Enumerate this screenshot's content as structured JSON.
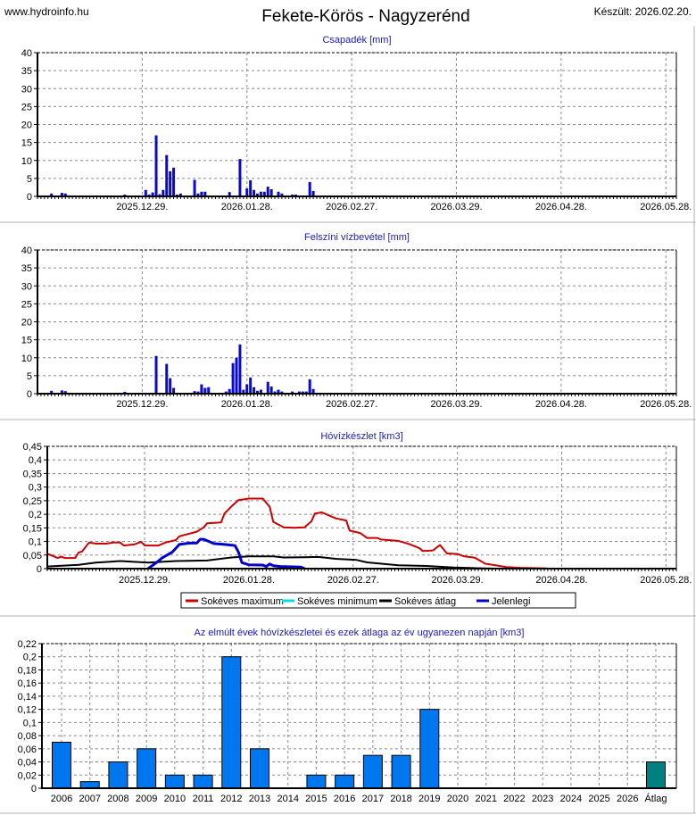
{
  "header": {
    "site": "www.hydroinfo.hu",
    "title": "Fekete-Körös - Nagyzerénd",
    "created": "Készült: 2026.02.20."
  },
  "colors": {
    "bar": "#0a0acc",
    "maximum": "#cc0000",
    "minimum": "#00e0e0",
    "average": "#000000",
    "current": "#0000cc",
    "year_bar": "#0077ee",
    "average_bar": "#008080",
    "title": "#1a1ab8"
  },
  "chart_data": [
    {
      "type": "bar",
      "title": "Csapadék [mm]",
      "xlim": [
        "2025.11.29",
        "2026.05.31"
      ],
      "ylim": [
        0,
        40
      ],
      "grid": true,
      "yticks": [
        "0",
        "5",
        "10",
        "15",
        "20",
        "25",
        "30",
        "35",
        "40"
      ],
      "xticks": [
        "2025.12.29.",
        "2026.01.28.",
        "2026.02.27.",
        "2026.03.29.",
        "2026.04.28.",
        "2026.05.28."
      ],
      "points": [
        [
          "2025.12.03",
          0.8
        ],
        [
          "2025.12.06",
          1.0
        ],
        [
          "2025.12.07",
          0.8
        ],
        [
          "2025.12.24",
          0.5
        ],
        [
          "2025.12.30",
          1.8
        ],
        [
          "2025.12.31",
          0.5
        ],
        [
          "2026.01.01",
          1.1
        ],
        [
          "2026.01.02",
          17
        ],
        [
          "2026.01.03",
          0.6
        ],
        [
          "2026.01.04",
          1.8
        ],
        [
          "2026.01.05",
          11.5
        ],
        [
          "2026.01.06",
          7
        ],
        [
          "2026.01.07",
          8
        ],
        [
          "2026.01.08",
          0.5
        ],
        [
          "2026.01.09",
          0.8
        ],
        [
          "2026.01.13",
          4.6
        ],
        [
          "2026.01.14",
          0.8
        ],
        [
          "2026.01.15",
          1.3
        ],
        [
          "2026.01.16",
          1.3
        ],
        [
          "2026.01.23",
          1.2
        ],
        [
          "2026.01.26",
          10.4
        ],
        [
          "2026.01.28",
          2.2
        ],
        [
          "2026.01.29",
          4.5
        ],
        [
          "2026.01.30",
          1.8
        ],
        [
          "2026.01.31",
          0.8
        ],
        [
          "2026.02.01",
          1.3
        ],
        [
          "2026.02.02",
          1.3
        ],
        [
          "2026.02.03",
          2.7
        ],
        [
          "2026.02.04",
          2
        ],
        [
          "2026.02.06",
          1.3
        ],
        [
          "2026.02.07",
          0.8
        ],
        [
          "2026.02.10",
          0.5
        ],
        [
          "2026.02.11",
          0.5
        ],
        [
          "2026.02.15",
          4
        ],
        [
          "2026.02.16",
          1.5
        ]
      ]
    },
    {
      "type": "bar",
      "title": "Felszíni vízbevétel [mm]",
      "xlim": [
        "2025.11.29",
        "2026.05.31"
      ],
      "ylim": [
        0,
        40
      ],
      "grid": true,
      "yticks": [
        "0",
        "5",
        "10",
        "15",
        "20",
        "25",
        "30",
        "35",
        "40"
      ],
      "xticks": [
        "2025.12.29.",
        "2026.01.28.",
        "2026.02.27.",
        "2026.03.29.",
        "2026.04.28.",
        "2026.05.28."
      ],
      "points": [
        [
          "2025.12.03",
          0.8
        ],
        [
          "2025.12.06",
          0.9
        ],
        [
          "2025.12.07",
          0.7
        ],
        [
          "2025.12.24",
          0.5
        ],
        [
          "2026.01.02",
          10.5
        ],
        [
          "2026.01.05",
          8.3
        ],
        [
          "2026.01.06",
          4.3
        ],
        [
          "2026.01.07",
          1.6
        ],
        [
          "2026.01.13",
          0.7
        ],
        [
          "2026.01.14",
          0.6
        ],
        [
          "2026.01.15",
          2.6
        ],
        [
          "2026.01.16",
          1.6
        ],
        [
          "2026.01.17",
          1.8
        ],
        [
          "2026.01.22",
          0.6
        ],
        [
          "2026.01.23",
          1.3
        ],
        [
          "2026.01.24",
          8.5
        ],
        [
          "2026.01.25",
          10
        ],
        [
          "2026.01.26",
          13.7
        ],
        [
          "2026.01.27",
          1.1
        ],
        [
          "2026.01.28",
          2.6
        ],
        [
          "2026.01.29",
          4.5
        ],
        [
          "2026.01.30",
          1.8
        ],
        [
          "2026.01.31",
          0.8
        ],
        [
          "2026.02.01",
          1.1
        ],
        [
          "2026.02.03",
          3.3
        ],
        [
          "2026.02.04",
          2
        ],
        [
          "2026.02.05",
          0.6
        ],
        [
          "2026.02.06",
          1.1
        ],
        [
          "2026.02.07",
          0.6
        ],
        [
          "2026.02.10",
          0.6
        ],
        [
          "2026.02.12",
          0.6
        ],
        [
          "2026.02.13",
          0.6
        ],
        [
          "2026.02.14",
          0.6
        ],
        [
          "2026.02.15",
          4
        ],
        [
          "2026.02.16",
          1.3
        ]
      ]
    },
    {
      "type": "line",
      "title": "Hóvízkészlet [km3]",
      "xlim": [
        "2025.12.01",
        "2026.05.31"
      ],
      "ylim": [
        0,
        0.45
      ],
      "grid": true,
      "yticks": [
        "0",
        "0,05",
        "0,1",
        "0,15",
        "0,2",
        "0,25",
        "0,3",
        "0,35",
        "0,4",
        "0,45"
      ],
      "xticks": [
        "2025.12.29.",
        "2026.01.28.",
        "2026.02.27.",
        "2026.03.29.",
        "2026.04.28.",
        "2026.05.28."
      ],
      "legend_position": "bottom",
      "series": [
        {
          "name": "Sokéves maximum",
          "key": "maximum",
          "points": [
            [
              "2025.12.01",
              0.055
            ],
            [
              "2025.12.04",
              0.039
            ],
            [
              "2025.12.05",
              0.044
            ],
            [
              "2025.12.06",
              0.039
            ],
            [
              "2025.12.09",
              0.039
            ],
            [
              "2025.12.10",
              0.059
            ],
            [
              "2025.12.11",
              0.063
            ],
            [
              "2025.12.13",
              0.096
            ],
            [
              "2025.12.15",
              0.092
            ],
            [
              "2025.12.18",
              0.092
            ],
            [
              "2025.12.20",
              0.096
            ],
            [
              "2025.12.22",
              0.096
            ],
            [
              "2025.12.23",
              0.085
            ],
            [
              "2025.12.26",
              0.089
            ],
            [
              "2025.12.28",
              0.099
            ],
            [
              "2025.12.29",
              0.085
            ],
            [
              "2026.01.02",
              0.085
            ],
            [
              "2026.01.04",
              0.096
            ],
            [
              "2026.01.07",
              0.105
            ],
            [
              "2026.01.08",
              0.119
            ],
            [
              "2026.01.13",
              0.136
            ],
            [
              "2026.01.15",
              0.152
            ],
            [
              "2026.01.16",
              0.167
            ],
            [
              "2026.01.20",
              0.17
            ],
            [
              "2026.01.21",
              0.203
            ],
            [
              "2026.01.23",
              0.229
            ],
            [
              "2026.01.25",
              0.252
            ],
            [
              "2026.01.28",
              0.258
            ],
            [
              "2026.02.01",
              0.258
            ],
            [
              "2026.02.03",
              0.227
            ],
            [
              "2026.02.04",
              0.172
            ],
            [
              "2026.02.06",
              0.159
            ],
            [
              "2026.02.07",
              0.152
            ],
            [
              "2026.02.10",
              0.15
            ],
            [
              "2026.02.13",
              0.152
            ],
            [
              "2026.02.15",
              0.174
            ],
            [
              "2026.02.16",
              0.203
            ],
            [
              "2026.02.18",
              0.207
            ],
            [
              "2026.02.20",
              0.196
            ],
            [
              "2026.02.22",
              0.185
            ],
            [
              "2026.02.25",
              0.177
            ],
            [
              "2026.02.26",
              0.14
            ],
            [
              "2026.03.01",
              0.131
            ],
            [
              "2026.03.03",
              0.113
            ],
            [
              "2026.03.06",
              0.113
            ],
            [
              "2026.03.07",
              0.107
            ],
            [
              "2026.03.12",
              0.102
            ],
            [
              "2026.03.15",
              0.091
            ],
            [
              "2026.03.18",
              0.076
            ],
            [
              "2026.03.19",
              0.065
            ],
            [
              "2026.03.22",
              0.067
            ],
            [
              "2026.03.24",
              0.087
            ],
            [
              "2026.03.26",
              0.056
            ],
            [
              "2026.03.29",
              0.054
            ],
            [
              "2026.03.31",
              0.045
            ],
            [
              "2026.04.03",
              0.04
            ],
            [
              "2026.04.06",
              0.018
            ],
            [
              "2026.04.09",
              0.012
            ],
            [
              "2026.04.12",
              0.006
            ],
            [
              "2026.04.16",
              0.003
            ],
            [
              "2026.04.24",
              0.001
            ]
          ]
        },
        {
          "name": "Sokéves minimum",
          "key": "minimum",
          "points": [
            [
              "2025.12.01",
              0
            ],
            [
              "2026.04.24",
              0
            ]
          ]
        },
        {
          "name": "Sokéves átlag",
          "key": "average",
          "points": [
            [
              "2025.12.01",
              0.008
            ],
            [
              "2025.12.10",
              0.014
            ],
            [
              "2025.12.15",
              0.022
            ],
            [
              "2025.12.22",
              0.028
            ],
            [
              "2025.12.30",
              0.022
            ],
            [
              "2026.01.07",
              0.028
            ],
            [
              "2026.01.16",
              0.03
            ],
            [
              "2026.01.23",
              0.041
            ],
            [
              "2026.01.28",
              0.045
            ],
            [
              "2026.02.04",
              0.045
            ],
            [
              "2026.02.07",
              0.041
            ],
            [
              "2026.02.13",
              0.042
            ],
            [
              "2026.02.17",
              0.043
            ],
            [
              "2026.02.22",
              0.036
            ],
            [
              "2026.02.28",
              0.032
            ],
            [
              "2026.03.03",
              0.023
            ],
            [
              "2026.03.12",
              0.012
            ],
            [
              "2026.03.20",
              0.01
            ],
            [
              "2026.03.28",
              0.004
            ],
            [
              "2026.04.06",
              0.001
            ],
            [
              "2026.04.10",
              0
            ]
          ]
        },
        {
          "name": "Jelenlegi",
          "key": "current",
          "points": [
            [
              "2025.12.30",
              0
            ],
            [
              "2026.01.02",
              0.028
            ],
            [
              "2026.01.03",
              0.039
            ],
            [
              "2026.01.06",
              0.061
            ],
            [
              "2026.01.08",
              0.089
            ],
            [
              "2026.01.11",
              0.094
            ],
            [
              "2026.01.13",
              0.094
            ],
            [
              "2026.01.14",
              0.108
            ],
            [
              "2026.01.15",
              0.108
            ],
            [
              "2026.01.18",
              0.092
            ],
            [
              "2026.01.21",
              0.089
            ],
            [
              "2026.01.24",
              0.085
            ],
            [
              "2026.01.25",
              0.061
            ],
            [
              "2026.01.26",
              0.022
            ],
            [
              "2026.01.28",
              0.014
            ],
            [
              "2026.02.01",
              0.013
            ],
            [
              "2026.02.02",
              0.008
            ],
            [
              "2026.02.03",
              0.017
            ],
            [
              "2026.02.04",
              0.011
            ],
            [
              "2026.02.06",
              0.008
            ],
            [
              "2026.02.12",
              0.006
            ],
            [
              "2026.02.13",
              0
            ]
          ]
        }
      ]
    },
    {
      "type": "bar",
      "title": "Az elmúlt évek hóvízkészletei és ezek átlaga az év ugyanezen napján [km3]",
      "ylim": [
        0,
        0.22
      ],
      "grid": true,
      "yticks": [
        "0",
        "0,02",
        "0,04",
        "0,06",
        "0,08",
        "0,1",
        "0,12",
        "0,14",
        "0,16",
        "0,18",
        "0,2",
        "0,22"
      ],
      "categories": [
        "2006",
        "2007",
        "2008",
        "2009",
        "2010",
        "2011",
        "2012",
        "2013",
        "2014",
        "2015",
        "2016",
        "2017",
        "2018",
        "2019",
        "2020",
        "2021",
        "2022",
        "2023",
        "2024",
        "2025",
        "2026",
        "Átlag"
      ],
      "values": [
        0.07,
        0.01,
        0.04,
        0.06,
        0.02,
        0.02,
        0.2,
        0.06,
        0,
        0.02,
        0.02,
        0.05,
        0.05,
        0.12,
        0,
        0,
        0,
        0,
        0,
        0,
        0,
        0.04
      ]
    }
  ]
}
